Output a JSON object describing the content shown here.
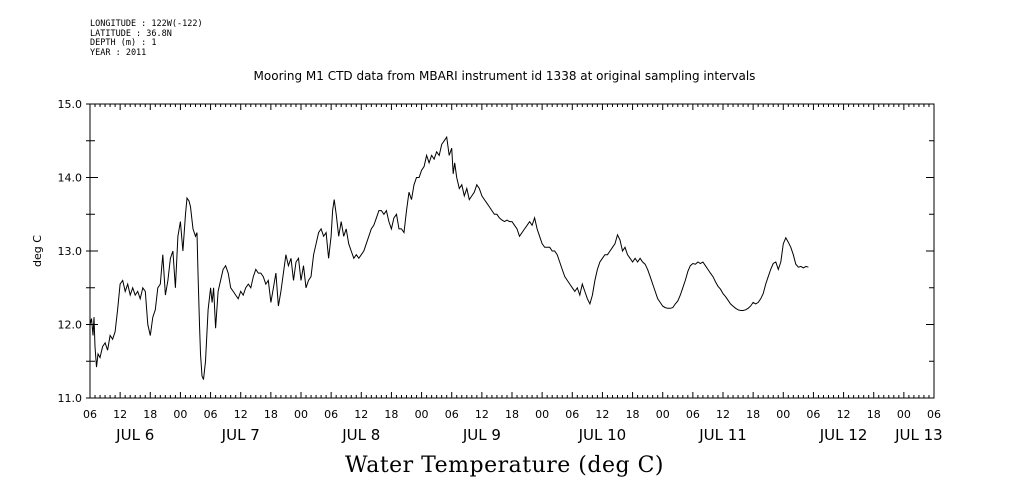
{
  "header": {
    "lines": [
      "LONGITUDE : 122W(-122)",
      "LATITUDE : 36.8N",
      "DEPTH (m) : 1",
      "YEAR : 2011"
    ]
  },
  "colors": {
    "line": "#000000",
    "background": "#ffffff"
  },
  "chart_data": {
    "type": "line",
    "title": "Mooring M1 CTD data from MBARI instrument id 1338 at original sampling intervals",
    "xlabel": "Water Temperature (deg C)",
    "ylabel": "deg C",
    "xlim_hours": [
      0,
      168
    ],
    "ylim": [
      11.0,
      15.0
    ],
    "y_ticks": [
      "11.0",
      "12.0",
      "13.0",
      "14.0",
      "15.0"
    ],
    "x_tick_hours": [
      "06",
      "12",
      "18",
      "00",
      "06",
      "12",
      "18",
      "00",
      "06",
      "12",
      "18",
      "00",
      "06",
      "12",
      "18",
      "00",
      "06",
      "12",
      "18",
      "00",
      "06",
      "12",
      "18",
      "00",
      "06",
      "12",
      "18",
      "00",
      "06"
    ],
    "day_labels": [
      "JUL  6",
      "JUL  7",
      "JUL  8",
      "JUL  9",
      "JUL 10",
      "JUL 11",
      "JUL 12",
      "JUL 13"
    ],
    "x_start": "2011-07-06 06:00",
    "series": [
      {
        "points": [
          [
            0.0,
            12.0
          ],
          [
            0.3,
            12.08
          ],
          [
            0.6,
            11.85
          ],
          [
            0.8,
            12.1
          ],
          [
            1.0,
            11.7
          ],
          [
            1.3,
            11.42
          ],
          [
            1.6,
            11.6
          ],
          [
            2.0,
            11.55
          ],
          [
            2.5,
            11.7
          ],
          [
            3.0,
            11.75
          ],
          [
            3.5,
            11.65
          ],
          [
            4.0,
            11.85
          ],
          [
            4.5,
            11.8
          ],
          [
            5.0,
            11.9
          ],
          [
            5.5,
            12.2
          ],
          [
            6.0,
            12.55
          ],
          [
            6.5,
            12.6
          ],
          [
            7.0,
            12.45
          ],
          [
            7.5,
            12.55
          ],
          [
            8.0,
            12.4
          ],
          [
            8.5,
            12.5
          ],
          [
            9.0,
            12.4
          ],
          [
            9.5,
            12.45
          ],
          [
            10.0,
            12.35
          ],
          [
            10.5,
            12.5
          ],
          [
            11.0,
            12.45
          ],
          [
            11.5,
            12.0
          ],
          [
            12.0,
            11.85
          ],
          [
            12.5,
            12.1
          ],
          [
            13.0,
            12.2
          ],
          [
            13.5,
            12.5
          ],
          [
            14.0,
            12.55
          ],
          [
            14.5,
            12.95
          ],
          [
            15.0,
            12.4
          ],
          [
            15.5,
            12.6
          ],
          [
            16.0,
            12.9
          ],
          [
            16.5,
            13.0
          ],
          [
            17.0,
            12.5
          ],
          [
            17.5,
            13.2
          ],
          [
            18.0,
            13.4
          ],
          [
            18.5,
            13.0
          ],
          [
            19.0,
            13.5
          ],
          [
            19.3,
            13.72
          ],
          [
            19.7,
            13.68
          ],
          [
            20.0,
            13.6
          ],
          [
            20.5,
            13.3
          ],
          [
            21.0,
            13.2
          ],
          [
            21.3,
            13.25
          ],
          [
            21.5,
            12.7
          ],
          [
            21.8,
            12.0
          ],
          [
            22.0,
            11.6
          ],
          [
            22.3,
            11.3
          ],
          [
            22.6,
            11.25
          ],
          [
            23.0,
            11.5
          ],
          [
            23.5,
            12.2
          ],
          [
            24.0,
            12.5
          ],
          [
            24.3,
            12.3
          ],
          [
            24.6,
            12.5
          ],
          [
            25.0,
            11.95
          ],
          [
            25.5,
            12.45
          ],
          [
            26.0,
            12.6
          ],
          [
            26.5,
            12.75
          ],
          [
            27.0,
            12.8
          ],
          [
            27.5,
            12.7
          ],
          [
            28.0,
            12.5
          ],
          [
            28.5,
            12.45
          ],
          [
            29.0,
            12.4
          ],
          [
            29.5,
            12.35
          ],
          [
            30.0,
            12.45
          ],
          [
            30.5,
            12.4
          ],
          [
            31.0,
            12.5
          ],
          [
            31.5,
            12.55
          ],
          [
            32.0,
            12.5
          ],
          [
            32.5,
            12.65
          ],
          [
            33.0,
            12.75
          ],
          [
            33.5,
            12.7
          ],
          [
            34.0,
            12.7
          ],
          [
            34.5,
            12.65
          ],
          [
            35.0,
            12.55
          ],
          [
            35.5,
            12.6
          ],
          [
            36.0,
            12.3
          ],
          [
            36.5,
            12.5
          ],
          [
            37.0,
            12.7
          ],
          [
            37.5,
            12.25
          ],
          [
            38.0,
            12.45
          ],
          [
            38.5,
            12.7
          ],
          [
            39.0,
            12.95
          ],
          [
            39.5,
            12.8
          ],
          [
            40.0,
            12.9
          ],
          [
            40.5,
            12.6
          ],
          [
            41.0,
            12.85
          ],
          [
            41.5,
            12.9
          ],
          [
            42.0,
            12.6
          ],
          [
            42.5,
            12.8
          ],
          [
            43.0,
            12.5
          ],
          [
            43.5,
            12.6
          ],
          [
            44.0,
            12.65
          ],
          [
            44.5,
            12.95
          ],
          [
            45.0,
            13.1
          ],
          [
            45.5,
            13.25
          ],
          [
            46.0,
            13.3
          ],
          [
            46.5,
            13.2
          ],
          [
            47.0,
            13.25
          ],
          [
            47.5,
            12.9
          ],
          [
            48.0,
            13.2
          ],
          [
            48.3,
            13.55
          ],
          [
            48.6,
            13.7
          ],
          [
            49.0,
            13.5
          ],
          [
            49.5,
            13.2
          ],
          [
            50.0,
            13.4
          ],
          [
            50.5,
            13.2
          ],
          [
            51.0,
            13.3
          ],
          [
            51.5,
            13.1
          ],
          [
            52.0,
            13.0
          ],
          [
            52.5,
            12.9
          ],
          [
            53.0,
            12.95
          ],
          [
            53.5,
            12.9
          ],
          [
            54.0,
            12.95
          ],
          [
            54.5,
            13.0
          ],
          [
            55.0,
            13.1
          ],
          [
            55.5,
            13.2
          ],
          [
            56.0,
            13.3
          ],
          [
            56.5,
            13.35
          ],
          [
            57.0,
            13.45
          ],
          [
            57.5,
            13.55
          ],
          [
            58.0,
            13.55
          ],
          [
            58.5,
            13.5
          ],
          [
            59.0,
            13.55
          ],
          [
            59.5,
            13.4
          ],
          [
            60.0,
            13.3
          ],
          [
            60.5,
            13.45
          ],
          [
            61.0,
            13.5
          ],
          [
            61.5,
            13.3
          ],
          [
            62.0,
            13.3
          ],
          [
            62.5,
            13.25
          ],
          [
            63.0,
            13.55
          ],
          [
            63.5,
            13.8
          ],
          [
            64.0,
            13.7
          ],
          [
            64.5,
            13.9
          ],
          [
            65.0,
            14.0
          ],
          [
            65.5,
            14.0
          ],
          [
            66.0,
            14.1
          ],
          [
            66.5,
            14.15
          ],
          [
            67.0,
            14.3
          ],
          [
            67.5,
            14.2
          ],
          [
            68.0,
            14.3
          ],
          [
            68.5,
            14.25
          ],
          [
            69.0,
            14.35
          ],
          [
            69.5,
            14.3
          ],
          [
            70.0,
            14.45
          ],
          [
            70.5,
            14.5
          ],
          [
            71.0,
            14.55
          ],
          [
            71.5,
            14.3
          ],
          [
            72.0,
            14.4
          ],
          [
            72.3,
            14.05
          ],
          [
            72.6,
            14.2
          ],
          [
            73.0,
            14.0
          ],
          [
            73.5,
            13.85
          ],
          [
            74.0,
            13.9
          ],
          [
            74.5,
            13.75
          ],
          [
            75.0,
            13.85
          ],
          [
            75.5,
            13.7
          ],
          [
            76.0,
            13.75
          ],
          [
            76.5,
            13.8
          ],
          [
            77.0,
            13.9
          ],
          [
            77.5,
            13.85
          ],
          [
            78.0,
            13.75
          ],
          [
            78.5,
            13.7
          ],
          [
            79.0,
            13.65
          ],
          [
            79.5,
            13.6
          ],
          [
            80.0,
            13.55
          ],
          [
            80.5,
            13.5
          ],
          [
            81.0,
            13.5
          ],
          [
            81.5,
            13.45
          ],
          [
            82.0,
            13.42
          ],
          [
            82.5,
            13.4
          ],
          [
            83.0,
            13.42
          ],
          [
            83.5,
            13.4
          ],
          [
            84.0,
            13.4
          ],
          [
            84.5,
            13.35
          ],
          [
            85.0,
            13.3
          ],
          [
            85.5,
            13.2
          ],
          [
            86.0,
            13.25
          ],
          [
            86.5,
            13.3
          ],
          [
            87.0,
            13.35
          ],
          [
            87.5,
            13.4
          ],
          [
            88.0,
            13.35
          ],
          [
            88.5,
            13.45
          ],
          [
            89.0,
            13.3
          ],
          [
            89.5,
            13.2
          ],
          [
            90.0,
            13.1
          ],
          [
            90.5,
            13.05
          ],
          [
            91.0,
            13.05
          ],
          [
            91.5,
            13.05
          ],
          [
            92.0,
            13.0
          ],
          [
            92.5,
            13.0
          ],
          [
            93.0,
            12.95
          ],
          [
            93.5,
            12.85
          ],
          [
            94.0,
            12.75
          ],
          [
            94.5,
            12.65
          ],
          [
            95.0,
            12.6
          ],
          [
            95.5,
            12.55
          ],
          [
            96.0,
            12.5
          ],
          [
            96.5,
            12.45
          ],
          [
            97.0,
            12.5
          ],
          [
            97.5,
            12.4
          ],
          [
            98.0,
            12.55
          ],
          [
            98.5,
            12.45
          ],
          [
            99.0,
            12.35
          ],
          [
            99.5,
            12.28
          ],
          [
            100.0,
            12.4
          ],
          [
            100.5,
            12.6
          ],
          [
            101.0,
            12.75
          ],
          [
            101.5,
            12.85
          ],
          [
            102.0,
            12.9
          ],
          [
            102.5,
            12.95
          ],
          [
            103.0,
            12.95
          ],
          [
            103.5,
            13.0
          ],
          [
            104.0,
            13.05
          ],
          [
            104.5,
            13.1
          ],
          [
            105.0,
            13.22
          ],
          [
            105.5,
            13.15
          ],
          [
            106.0,
            13.0
          ],
          [
            106.5,
            13.05
          ],
          [
            107.0,
            12.95
          ],
          [
            107.5,
            12.9
          ],
          [
            108.0,
            12.85
          ],
          [
            108.5,
            12.9
          ],
          [
            109.0,
            12.85
          ],
          [
            109.5,
            12.9
          ],
          [
            110.0,
            12.85
          ],
          [
            110.5,
            12.82
          ],
          [
            111.0,
            12.75
          ],
          [
            111.5,
            12.65
          ],
          [
            112.0,
            12.55
          ],
          [
            112.5,
            12.45
          ],
          [
            113.0,
            12.35
          ],
          [
            113.5,
            12.3
          ],
          [
            114.0,
            12.25
          ],
          [
            114.5,
            12.23
          ],
          [
            115.0,
            12.22
          ],
          [
            115.5,
            12.22
          ],
          [
            116.0,
            12.23
          ],
          [
            116.5,
            12.28
          ],
          [
            117.0,
            12.32
          ],
          [
            117.5,
            12.4
          ],
          [
            118.0,
            12.5
          ],
          [
            118.5,
            12.6
          ],
          [
            119.0,
            12.72
          ],
          [
            119.5,
            12.8
          ],
          [
            120.0,
            12.83
          ],
          [
            120.5,
            12.82
          ],
          [
            121.0,
            12.85
          ],
          [
            121.5,
            12.83
          ],
          [
            122.0,
            12.85
          ],
          [
            122.5,
            12.8
          ],
          [
            123.0,
            12.75
          ],
          [
            123.5,
            12.7
          ],
          [
            124.0,
            12.65
          ],
          [
            124.5,
            12.58
          ],
          [
            125.0,
            12.52
          ],
          [
            125.5,
            12.48
          ],
          [
            126.0,
            12.42
          ],
          [
            126.5,
            12.38
          ],
          [
            127.0,
            12.33
          ],
          [
            127.5,
            12.28
          ],
          [
            128.0,
            12.25
          ],
          [
            128.5,
            12.22
          ],
          [
            129.0,
            12.2
          ],
          [
            129.5,
            12.19
          ],
          [
            130.0,
            12.19
          ],
          [
            130.5,
            12.2
          ],
          [
            131.0,
            12.22
          ],
          [
            131.5,
            12.25
          ],
          [
            132.0,
            12.3
          ],
          [
            132.5,
            12.28
          ],
          [
            133.0,
            12.3
          ],
          [
            133.5,
            12.35
          ],
          [
            134.0,
            12.42
          ],
          [
            134.5,
            12.55
          ],
          [
            135.0,
            12.65
          ],
          [
            135.5,
            12.75
          ],
          [
            136.0,
            12.83
          ],
          [
            136.5,
            12.85
          ],
          [
            137.0,
            12.75
          ],
          [
            137.5,
            12.85
          ],
          [
            138.0,
            13.1
          ],
          [
            138.5,
            13.18
          ],
          [
            139.0,
            13.12
          ],
          [
            139.5,
            13.05
          ],
          [
            140.0,
            12.95
          ],
          [
            140.5,
            12.82
          ],
          [
            141.0,
            12.78
          ],
          [
            141.5,
            12.79
          ],
          [
            142.0,
            12.77
          ],
          [
            142.5,
            12.79
          ],
          [
            143.0,
            12.78
          ]
        ]
      }
    ]
  }
}
